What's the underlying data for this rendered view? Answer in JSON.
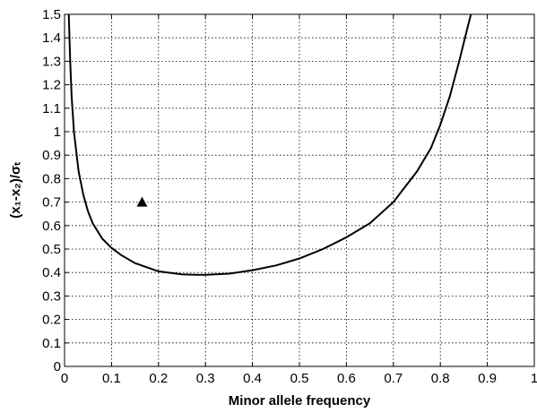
{
  "chart_data": {
    "type": "line",
    "title": "",
    "xlabel": "Minor allele frequency",
    "ylabel": "(x₁-x₂)/σₜ",
    "xlim": [
      0,
      1
    ],
    "ylim": [
      0,
      1.5
    ],
    "x_ticks": [
      0,
      0.1,
      0.2,
      0.3,
      0.4,
      0.5,
      0.6,
      0.7,
      0.8,
      0.9,
      1
    ],
    "x_tick_labels": [
      "0",
      "0.1",
      "0.2",
      "0.3",
      "0.4",
      "0.5",
      "0.6",
      "0.7",
      "0.8",
      "0.9",
      "1"
    ],
    "y_ticks": [
      0,
      0.1,
      0.2,
      0.3,
      0.4,
      0.5,
      0.6,
      0.7,
      0.8,
      0.9,
      1,
      1.1,
      1.2,
      1.3,
      1.4,
      1.5
    ],
    "y_tick_labels": [
      "0",
      "0.1",
      "0.2",
      "0.3",
      "0.4",
      "0.5",
      "0.6",
      "0.7",
      "0.8",
      "0.9",
      "1",
      "1.1",
      "1.2",
      "1.3",
      "1.4",
      "1.5"
    ],
    "grid": true,
    "series": [
      {
        "type": "line",
        "color": "#000000",
        "x": [
          0.009,
          0.012,
          0.015,
          0.02,
          0.03,
          0.04,
          0.05,
          0.06,
          0.08,
          0.1,
          0.12,
          0.15,
          0.2,
          0.25,
          0.28,
          0.3,
          0.35,
          0.4,
          0.45,
          0.5,
          0.55,
          0.6,
          0.65,
          0.7,
          0.75,
          0.78,
          0.8,
          0.82,
          0.84,
          0.85,
          0.86,
          0.865
        ],
        "y": [
          1.5,
          1.3,
          1.15,
          1.0,
          0.83,
          0.73,
          0.66,
          0.61,
          0.545,
          0.505,
          0.475,
          0.44,
          0.405,
          0.392,
          0.39,
          0.39,
          0.395,
          0.41,
          0.43,
          0.46,
          0.5,
          0.55,
          0.61,
          0.7,
          0.83,
          0.93,
          1.03,
          1.15,
          1.3,
          1.38,
          1.46,
          1.5
        ]
      },
      {
        "type": "scatter",
        "marker": "triangle",
        "color": "#000000",
        "x": [
          0.165
        ],
        "y": [
          0.7
        ]
      }
    ]
  }
}
